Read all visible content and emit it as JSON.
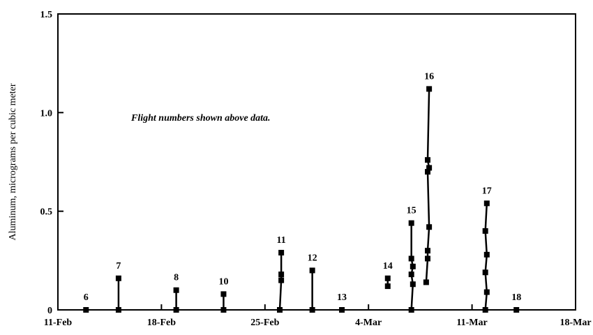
{
  "chart_data": {
    "type": "line",
    "ylabel": "Aluminum, micrograms per cubic meter",
    "annotation": "Flight numbers shown above data.",
    "xlim": [
      42,
      77
    ],
    "xticks": [
      {
        "value": 42,
        "label": "11-Feb"
      },
      {
        "value": 49,
        "label": "18-Feb"
      },
      {
        "value": 56,
        "label": "25-Feb"
      },
      {
        "value": 63,
        "label": "4-Mar"
      },
      {
        "value": 70,
        "label": "11-Mar"
      },
      {
        "value": 77,
        "label": "18-Mar"
      }
    ],
    "ylim": [
      0,
      1.5
    ],
    "yticks": [
      0,
      0.5,
      {
        "value": 1,
        "label": "1.0"
      },
      1.5
    ],
    "color": "#000000",
    "series": [
      {
        "name": "6",
        "x": [
          43.9
        ],
        "values": [
          0
        ]
      },
      {
        "name": "7",
        "x": [
          46.1,
          46.1
        ],
        "values": [
          0.16,
          0
        ]
      },
      {
        "name": "8",
        "x": [
          50.0,
          50.0
        ],
        "values": [
          0.1,
          0
        ]
      },
      {
        "name": "10",
        "x": [
          53.2,
          53.2
        ],
        "values": [
          0.08,
          0
        ]
      },
      {
        "name": "11",
        "x": [
          57.1,
          57.1,
          57.1,
          57.0
        ],
        "values": [
          0.29,
          0.18,
          0.15,
          0
        ]
      },
      {
        "name": "12",
        "x": [
          59.2,
          59.2
        ],
        "values": [
          0.2,
          0
        ]
      },
      {
        "name": "13",
        "x": [
          61.2
        ],
        "values": [
          0
        ]
      },
      {
        "name": "14",
        "x": [
          64.3,
          64.3
        ],
        "values": [
          0.16,
          0.12
        ]
      },
      {
        "name": "15",
        "x": [
          65.9,
          65.9,
          66.0,
          65.9,
          66.0,
          65.9
        ],
        "values": [
          0.44,
          0.26,
          0.22,
          0.18,
          0.13,
          0
        ]
      },
      {
        "name": "16",
        "x": [
          67.1,
          67.0,
          67.1,
          67.0,
          67.1,
          67.0,
          67.0,
          66.9
        ],
        "values": [
          1.12,
          0.76,
          0.72,
          0.7,
          0.42,
          0.3,
          0.26,
          0.14
        ]
      },
      {
        "name": "17",
        "x": [
          71.0,
          70.9,
          71.0,
          70.9,
          71.0,
          70.9
        ],
        "values": [
          0.54,
          0.4,
          0.28,
          0.19,
          0.09,
          0
        ]
      },
      {
        "name": "18",
        "x": [
          73.0
        ],
        "values": [
          0
        ]
      }
    ]
  }
}
